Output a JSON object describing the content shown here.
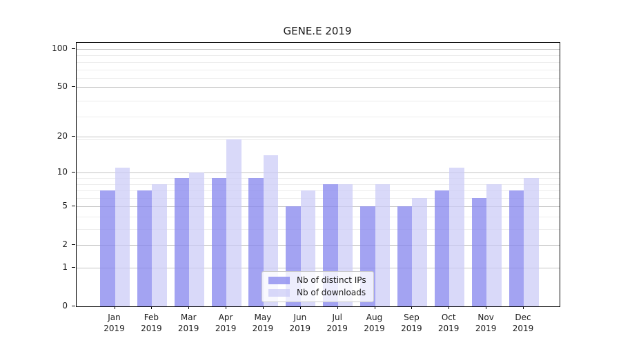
{
  "title": "GENE.E 2019",
  "chart_data": {
    "type": "bar",
    "categories": [
      "Jan",
      "Feb",
      "Mar",
      "Apr",
      "May",
      "Jun",
      "Jul",
      "Aug",
      "Sep",
      "Oct",
      "Nov",
      "Dec"
    ],
    "year": "2019",
    "series": [
      {
        "name": "Nb of distinct IPs",
        "color": "rgba(134,134,238,0.76)",
        "values": [
          7,
          7,
          9,
          9,
          9,
          5,
          8,
          5,
          5,
          7,
          6,
          7
        ]
      },
      {
        "name": "Nb of downloads",
        "color": "rgba(202,202,246,0.72)",
        "values": [
          11,
          8,
          10,
          19,
          14,
          7,
          8,
          8,
          6,
          11,
          8,
          9
        ]
      }
    ],
    "xlabel": "",
    "ylabel": "",
    "yscale": "log1p",
    "ylim": [
      0,
      112
    ],
    "yticks": [
      0,
      1,
      2,
      5,
      10,
      20,
      50,
      100
    ],
    "yminor": [
      3,
      4,
      6,
      7,
      8,
      9,
      19,
      29,
      39,
      59,
      69,
      79,
      89
    ],
    "grid": true,
    "legend_position": "lower center"
  },
  "colors": {
    "background": "#ffffff",
    "bar_distinct_ips": "rgba(134,134,238,0.76)",
    "bar_downloads": "rgba(202,202,246,0.72)",
    "grid_major": "#c3c3c3",
    "grid_minor": "#ececec",
    "axis": "#000000",
    "text": "#1a1a1a"
  }
}
